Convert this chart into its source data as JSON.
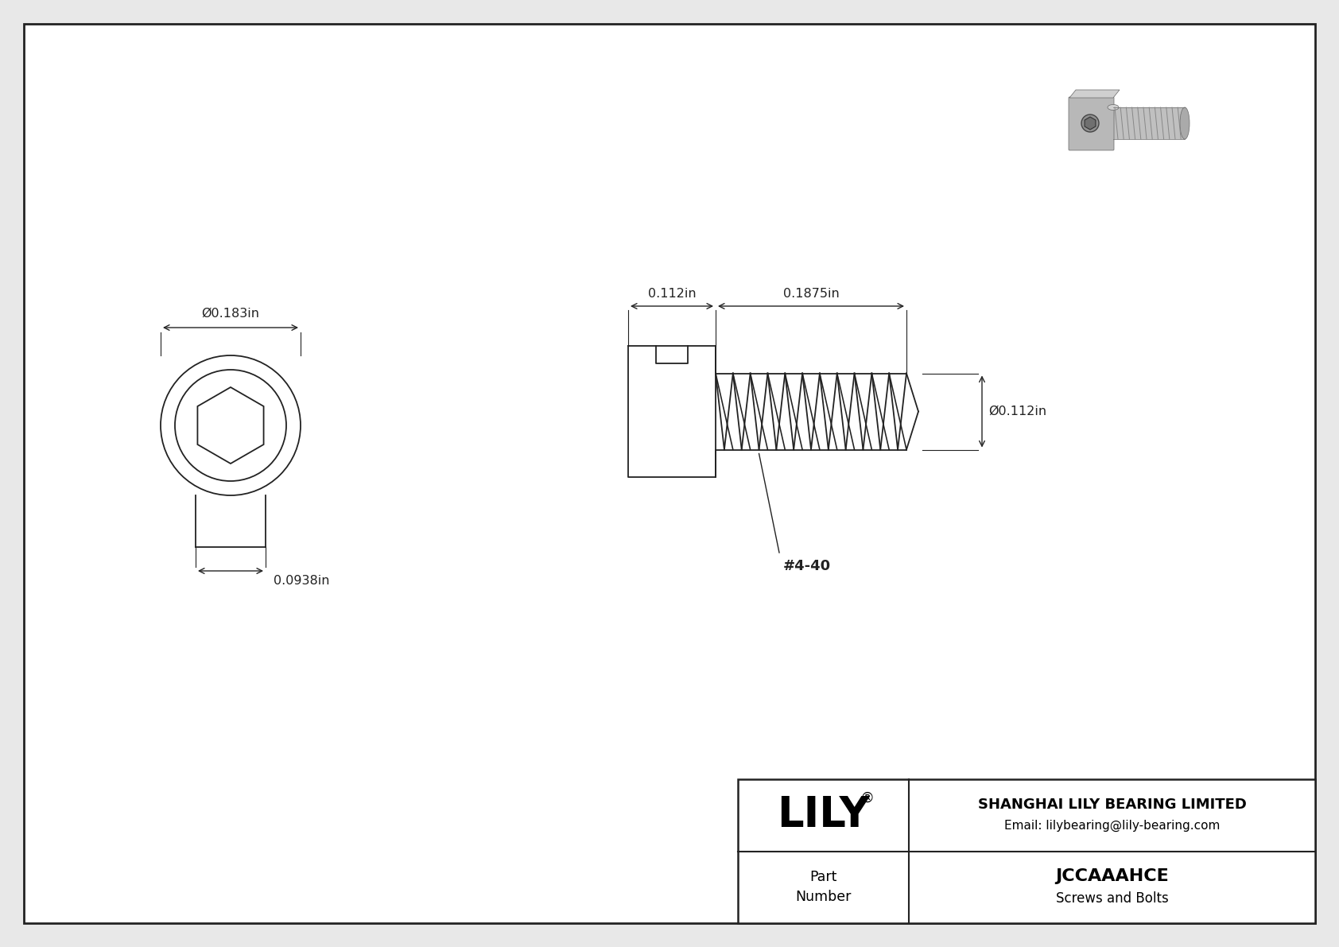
{
  "bg_color": "#e8e8e8",
  "paper_color": "#ffffff",
  "border_color": "#222222",
  "line_color": "#222222",
  "dim_color": "#222222",
  "company": "SHANGHAI LILY BEARING LIMITED",
  "email": "Email: lilybearing@lily-bearing.com",
  "part_label": "Part\nNumber",
  "part_number": "JCCAAAHCE",
  "part_type": "Screws and Bolts",
  "dim_head_dia": "Ø0.183in",
  "dim_body_width": "0.0938in",
  "dim_head_len": "0.112in",
  "dim_body_len": "0.1875in",
  "dim_thread_dia": "Ø0.112in",
  "dim_thread_label": "#4-40"
}
